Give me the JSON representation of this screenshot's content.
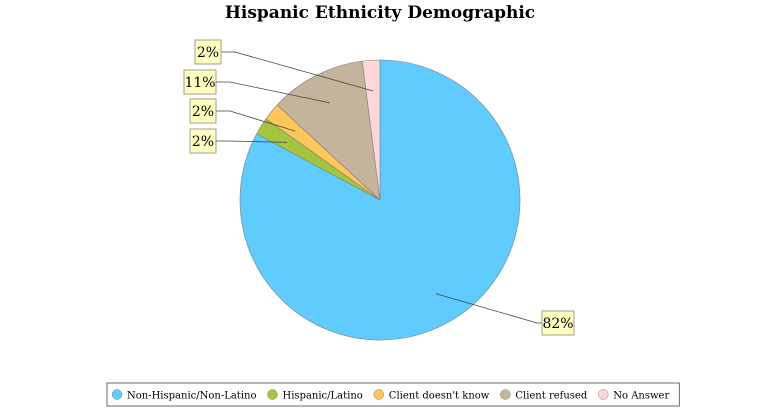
{
  "chart_data": {
    "type": "pie",
    "title": "Hispanic Ethnicity Demographic",
    "slices": [
      {
        "label": "Non-Hispanic/Non-Latino",
        "value": 82,
        "display": "82%",
        "color": "#5fcbff"
      },
      {
        "label": "Hispanic/Latino",
        "value": 2,
        "display": "2%",
        "color": "#a4c53f"
      },
      {
        "label": "Client doesn't know",
        "value": 2,
        "display": "2%",
        "color": "#ffc65c"
      },
      {
        "label": "Client refused",
        "value": 11,
        "display": "11%",
        "color": "#c4b49b"
      },
      {
        "label": "No Answer",
        "value": 2,
        "display": "2%",
        "color": "#ffd6da"
      }
    ],
    "legend_position": "bottom",
    "label_box_color": "#ffffc0"
  }
}
